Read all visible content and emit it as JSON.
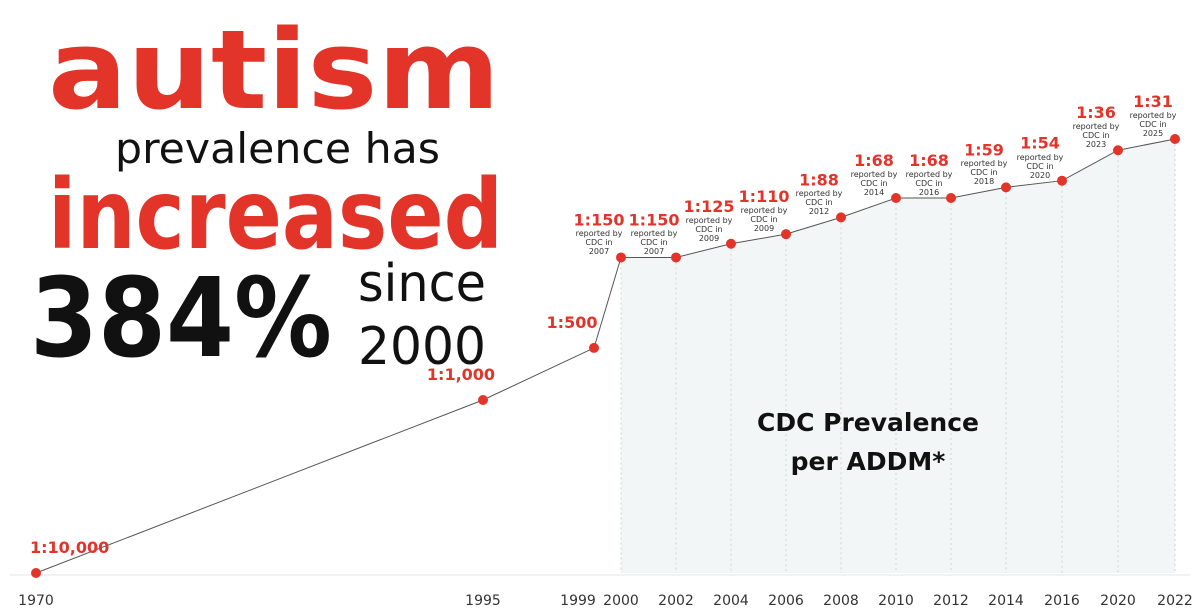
{
  "chart_data": {
    "type": "line",
    "headline": {
      "line1": "autism",
      "line2": "prevalence has",
      "line3": "increased",
      "percent": "384%",
      "since": "since",
      "since_year": "2000"
    },
    "annotation": {
      "line1": "CDC Prevalence",
      "line2": "per ADDM*"
    },
    "color": "#e3342a",
    "categories": [
      "1970",
      "1995",
      "1999",
      "2000",
      "2002",
      "2004",
      "2006",
      "2008",
      "2010",
      "2012",
      "2014",
      "2016",
      "2020",
      "2022"
    ],
    "values": [
      10000,
      1000,
      500,
      150,
      150,
      125,
      110,
      88,
      68,
      68,
      59,
      54,
      36,
      31
    ],
    "value_labels": [
      "1:10,000",
      "1:1,000",
      "1:500",
      "1:150",
      "1:150",
      "1:125",
      "1:110",
      "1:88",
      "1:68",
      "1:68",
      "1:59",
      "1:54",
      "1:36",
      "1:31"
    ],
    "notes": [
      null,
      null,
      null,
      "reported by CDC in 2007",
      "reported by CDC in 2007",
      "reported by CDC in 2009",
      "reported by CDC in 2009",
      "reported by CDC in 2012",
      "reported by CDC in 2014",
      "reported by CDC in 2016",
      "reported by CDC in 2018",
      "reported by CDC in 2020",
      "reported by CDC in 2023",
      "reported by CDC in 2025"
    ],
    "log_scale": true
  }
}
